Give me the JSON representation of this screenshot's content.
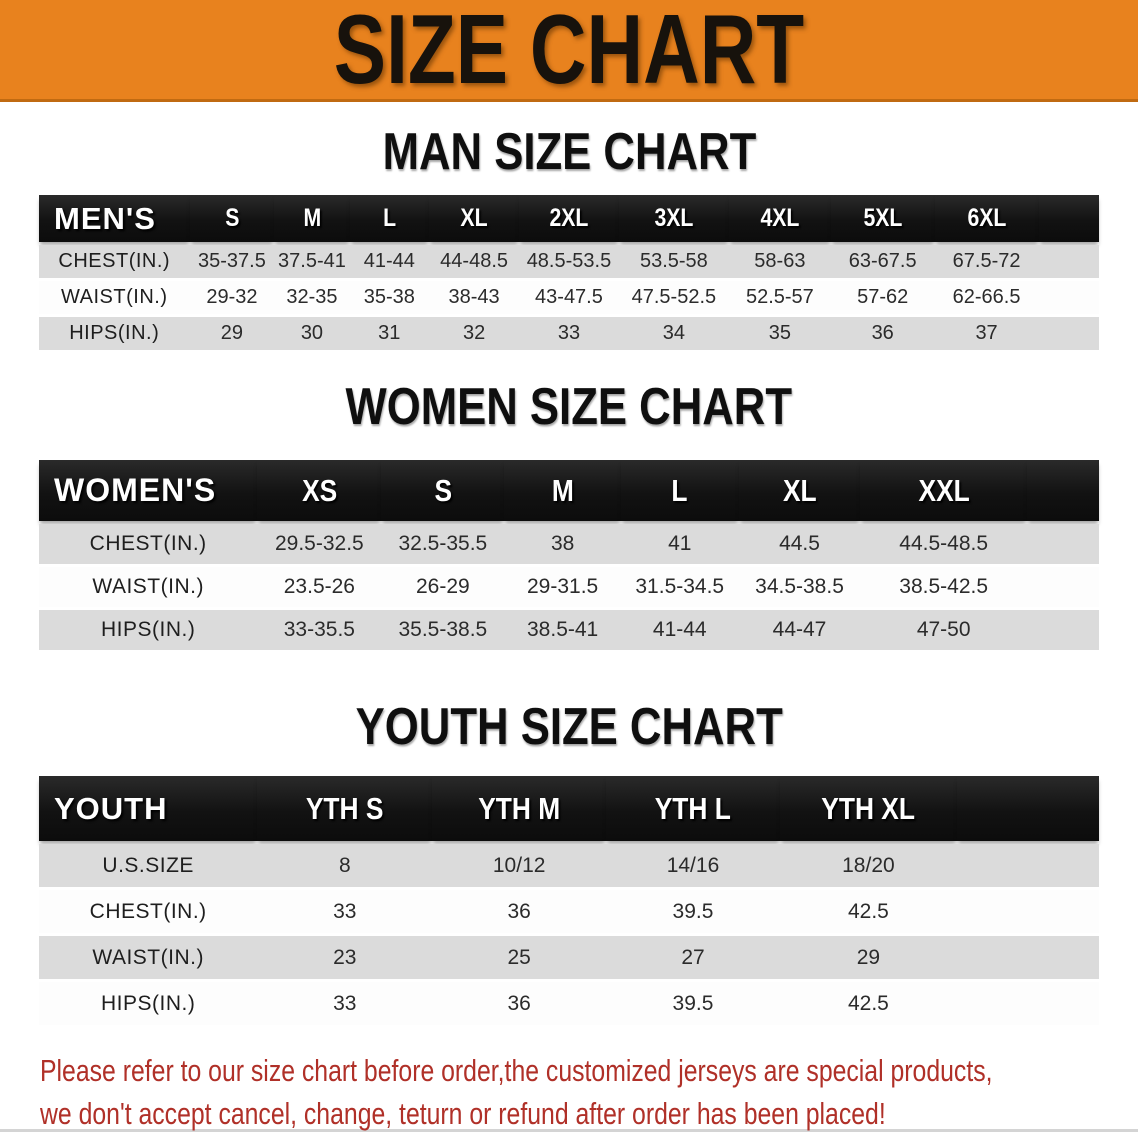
{
  "banner": {
    "title": "SIZE CHART",
    "bg_color": "#E8821E",
    "title_color": "#17120c"
  },
  "colors": {
    "table_header_bg": "#1a1a1a",
    "stripe_gray": "#dbdbdb",
    "stripe_white": "#fdfdfd",
    "footnote_red": "#B03028"
  },
  "sections": [
    {
      "id": "men",
      "heading": "MAN SIZE CHART",
      "table": {
        "label_header": "MEN'S",
        "size_headers": [
          "S",
          "M",
          "L",
          "XL",
          "2XL",
          "3XL",
          "4XL",
          "5XL",
          "6XL"
        ],
        "rows": [
          {
            "label": "CHEST(IN.)",
            "values": [
              "35-37.5",
              "37.5-41",
              "41-44",
              "44-48.5",
              "48.5-53.5",
              "53.5-58",
              "58-63",
              "63-67.5",
              "67.5-72"
            ]
          },
          {
            "label": "WAIST(IN.)",
            "values": [
              "29-32",
              "32-35",
              "35-38",
              "38-43",
              "43-47.5",
              "47.5-52.5",
              "52.5-57",
              "57-62",
              "62-66.5"
            ]
          },
          {
            "label": "HIPS(IN.)",
            "values": [
              "29",
              "30",
              "31",
              "32",
              "33",
              "34",
              "35",
              "36",
              "37"
            ]
          }
        ]
      }
    },
    {
      "id": "women",
      "heading": "WOMEN SIZE CHART",
      "table": {
        "label_header": "WOMEN'S",
        "size_headers": [
          "XS",
          "S",
          "M",
          "L",
          "XL",
          "XXL"
        ],
        "rows": [
          {
            "label": "CHEST(IN.)",
            "values": [
              "29.5-32.5",
              "32.5-35.5",
              "38",
              "41",
              "44.5",
              "44.5-48.5"
            ]
          },
          {
            "label": "WAIST(IN.)",
            "values": [
              "23.5-26",
              "26-29",
              "29-31.5",
              "31.5-34.5",
              "34.5-38.5",
              "38.5-42.5"
            ]
          },
          {
            "label": "HIPS(IN.)",
            "values": [
              "33-35.5",
              "35.5-38.5",
              "38.5-41",
              "41-44",
              "44-47",
              "47-50"
            ]
          }
        ]
      }
    },
    {
      "id": "youth",
      "heading": "YOUTH SIZE CHART",
      "table": {
        "label_header": "YOUTH",
        "size_headers": [
          "YTH S",
          "YTH M",
          "YTH L",
          "YTH XL"
        ],
        "rows": [
          {
            "label": "U.S.SIZE",
            "values": [
              "8",
              "10/12",
              "14/16",
              "18/20"
            ]
          },
          {
            "label": "CHEST(IN.)",
            "values": [
              "33",
              "36",
              "39.5",
              "42.5"
            ]
          },
          {
            "label": "WAIST(IN.)",
            "values": [
              "23",
              "25",
              "27",
              "29"
            ]
          },
          {
            "label": "HIPS(IN.)",
            "values": [
              "33",
              "36",
              "39.5",
              "42.5"
            ]
          }
        ]
      }
    }
  ],
  "footnote": {
    "line1": "Please refer to our size chart before order,the customized jerseys are special products,",
    "line2": "we don't accept cancel, change, teturn or refund after order has been placed!"
  }
}
